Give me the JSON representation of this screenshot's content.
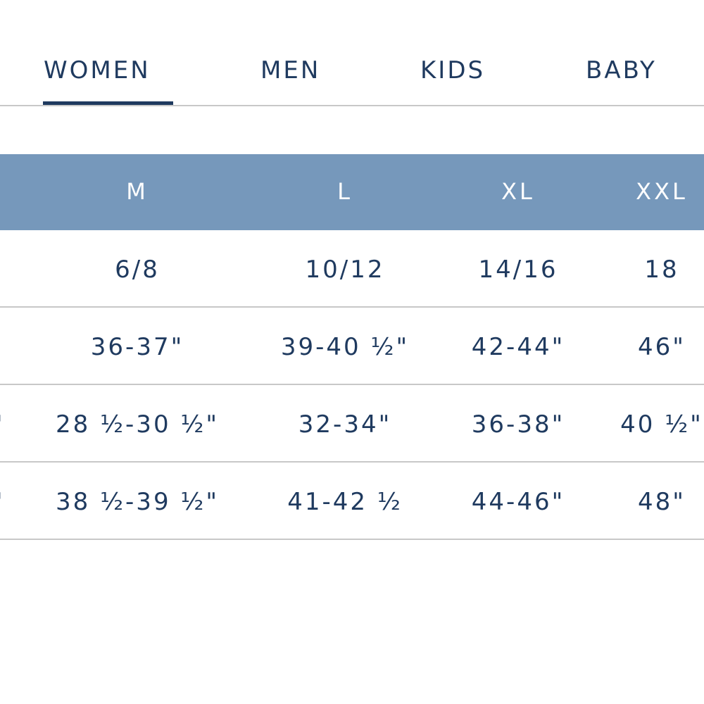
{
  "tabs": [
    {
      "label": "WOMEN",
      "active": true
    },
    {
      "label": "MEN",
      "active": false
    },
    {
      "label": "KIDS",
      "active": false
    },
    {
      "label": "BABY",
      "active": false
    }
  ],
  "colors": {
    "accent": "#1f3a5f",
    "header_bg": "#7698bb",
    "divider": "#c8c8c8"
  },
  "size_table": {
    "headers": [
      "M",
      "L",
      "XL",
      "XXL"
    ],
    "rows": [
      {
        "label_fragment": "",
        "values": [
          "6/8",
          "10/12",
          "14/16",
          "18"
        ]
      },
      {
        "label_fragment": "",
        "values": [
          "36-37\"",
          "39-40 ½\"",
          "42-44\"",
          "46\""
        ]
      },
      {
        "label_fragment": "\"",
        "values": [
          "28 ½-30 ½\"",
          "32-34\"",
          "36-38\"",
          "40 ½\""
        ]
      },
      {
        "label_fragment": "\"",
        "values": [
          "38 ½-39 ½\"",
          "41-42 ½",
          "44-46\"",
          "48\""
        ]
      }
    ]
  }
}
